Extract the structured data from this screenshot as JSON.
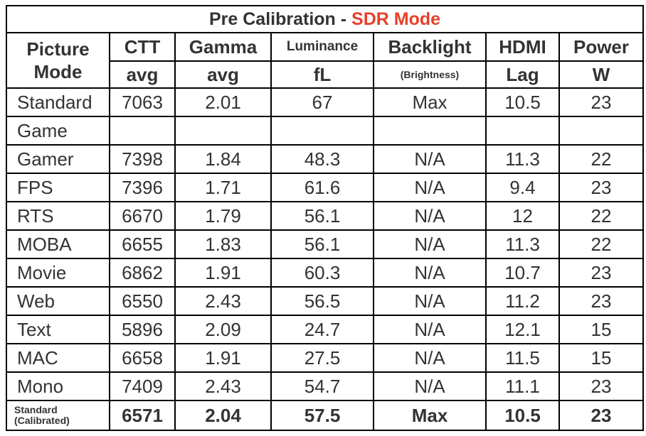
{
  "title": {
    "main": "Pre Calibration - ",
    "accent": "SDR Mode",
    "accent_color": "#e8402a"
  },
  "headers": {
    "picture_mode": [
      "Picture",
      "Mode"
    ],
    "columns": [
      {
        "top": "CTT",
        "bottom": "avg"
      },
      {
        "top": "Gamma",
        "bottom": "avg"
      },
      {
        "top": "Luminance",
        "bottom": "fL"
      },
      {
        "top": "Backlight",
        "bottom": "(Brightness)"
      },
      {
        "top": "HDMI",
        "bottom": "Lag"
      },
      {
        "top": "Power",
        "bottom": "W"
      }
    ]
  },
  "rows": [
    {
      "mode": "Standard",
      "values": [
        "7063",
        "2.01",
        "67",
        "Max",
        "10.5",
        "23"
      ]
    },
    {
      "mode": "Game",
      "values": [
        "",
        "",
        "",
        "",
        "",
        ""
      ]
    },
    {
      "mode": "Gamer",
      "values": [
        "7398",
        "1.84",
        "48.3",
        "N/A",
        "11.3",
        "22"
      ]
    },
    {
      "mode": "FPS",
      "values": [
        "7396",
        "1.71",
        "61.6",
        "N/A",
        "9.4",
        "23"
      ]
    },
    {
      "mode": "RTS",
      "values": [
        "6670",
        "1.79",
        "56.1",
        "N/A",
        "12",
        "22"
      ]
    },
    {
      "mode": "MOBA",
      "values": [
        "6655",
        "1.83",
        "56.1",
        "N/A",
        "11.3",
        "22"
      ]
    },
    {
      "mode": "Movie",
      "values": [
        "6862",
        "1.91",
        "60.3",
        "N/A",
        "10.7",
        "23"
      ]
    },
    {
      "mode": "Web",
      "values": [
        "6550",
        "2.43",
        "56.5",
        "N/A",
        "11.2",
        "23"
      ]
    },
    {
      "mode": "Text",
      "values": [
        "5896",
        "2.09",
        "24.7",
        "N/A",
        "12.1",
        "15"
      ]
    },
    {
      "mode": "MAC",
      "values": [
        "6658",
        "1.91",
        "27.5",
        "N/A",
        "11.5",
        "15"
      ]
    },
    {
      "mode": "Mono",
      "values": [
        "7409",
        "2.43",
        "54.7",
        "N/A",
        "11.1",
        "23"
      ]
    }
  ],
  "calibrated": {
    "mode_line1": "Standard",
    "mode_line2": "(Calibrated)",
    "values": [
      "6571",
      "2.04",
      "57.5",
      "Max",
      "10.5",
      "23"
    ]
  }
}
